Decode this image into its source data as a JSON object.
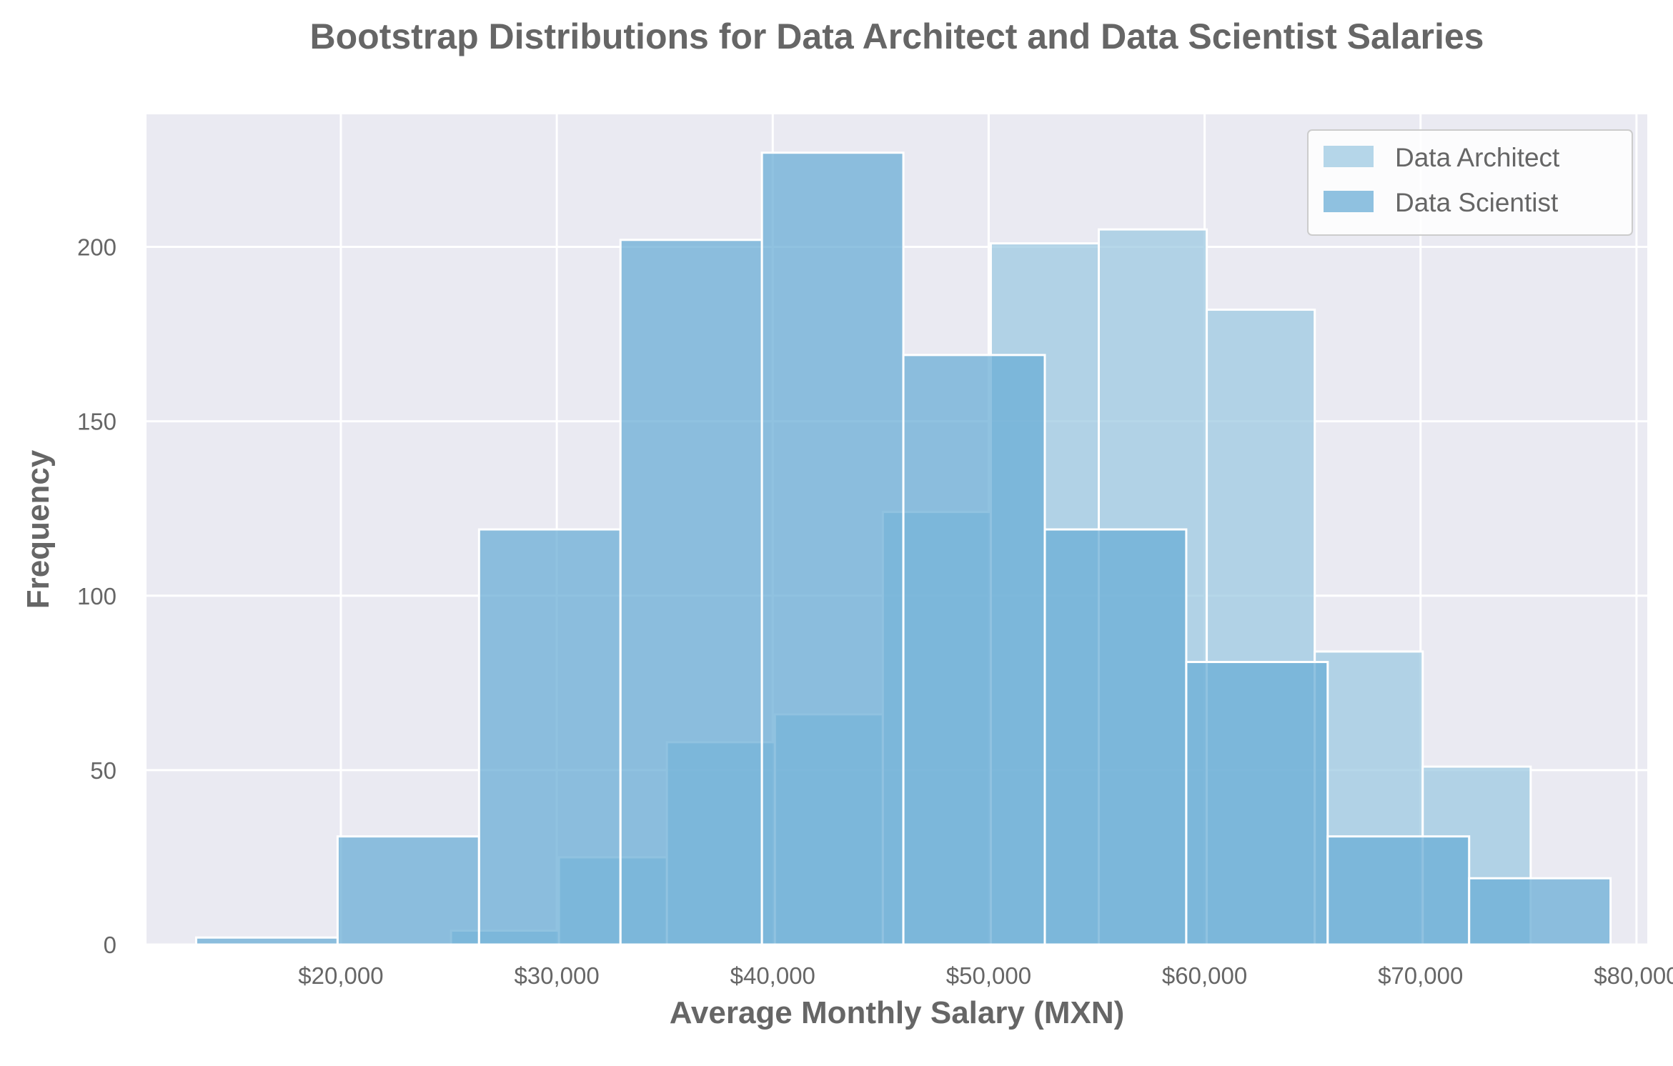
{
  "chart_data": {
    "type": "bar",
    "subtype": "overlapping-histogram",
    "title": "Bootstrap Distributions for Data Architect and Data Scientist Salaries",
    "xlabel": "Average Monthly Salary (MXN)",
    "ylabel": "Frequency",
    "xlim": [
      11000,
      80500
    ],
    "ylim": [
      0,
      238
    ],
    "x_ticks": [
      20000,
      30000,
      40000,
      50000,
      60000,
      70000,
      80000
    ],
    "x_tick_labels": [
      "$20,000",
      "$30,000",
      "$40,000",
      "$50,000",
      "$60,000",
      "$70,000",
      "$80,000"
    ],
    "y_ticks": [
      0,
      50,
      100,
      150,
      200
    ],
    "y_tick_labels": [
      "0",
      "50",
      "100",
      "150",
      "200"
    ],
    "grid": true,
    "legend_position": "top-right",
    "series": [
      {
        "name": "Data Architect",
        "color": "#9ecae1",
        "opacity": 0.75,
        "bins": [
          25100,
          30100,
          35100,
          40100,
          45100,
          50100,
          55100,
          60100,
          65100,
          70100,
          75100
        ],
        "values": [
          4,
          25,
          58,
          66,
          124,
          201,
          205,
          182,
          84,
          51
        ]
      },
      {
        "name": "Data Scientist",
        "color": "#6baed6",
        "opacity": 0.75,
        "bins": [
          13300,
          19850,
          26400,
          32950,
          39500,
          46050,
          52600,
          59150,
          65700,
          72250,
          78800
        ],
        "values": [
          2,
          31,
          119,
          202,
          227,
          169,
          119,
          81,
          31,
          19
        ]
      }
    ]
  }
}
